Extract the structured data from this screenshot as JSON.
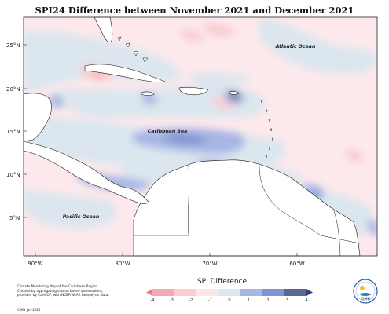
{
  "title": "SPI24 Difference between November 2021 and December 2021",
  "map": {
    "lat_labels": [
      "25°N",
      "20°N",
      "15°N",
      "10°N",
      "5°N"
    ],
    "lon_labels": [
      "90°W",
      "80°W",
      "70°W",
      "60°W"
    ],
    "places": {
      "atlantic": "Atlantic Ocean",
      "caribbean": "Caribbean Sea",
      "pacific": "Pacific Ocean"
    }
  },
  "legend": {
    "title": "SPI Difference",
    "ticks": [
      "-4",
      "-3",
      "-2",
      "-1",
      "0",
      "1",
      "2",
      "3",
      "4"
    ],
    "colors": [
      "#f07a86",
      "#f5a9b1",
      "#f9cdd2",
      "#fbe6e8",
      "#dbe6ee",
      "#a7b6e4",
      "#7f92d1",
      "#58688e",
      "#3a4070"
    ]
  },
  "credit": {
    "lines": [
      "Climate Monitoring Map of the Caribbean Region.",
      "Created by aggregating station based observations,",
      "provided by CariCOF, with NCEP/NCAR Reanalysis Data."
    ],
    "date": "CIMH  Jan-2022"
  },
  "logo": {
    "text": "CIMH"
  }
}
